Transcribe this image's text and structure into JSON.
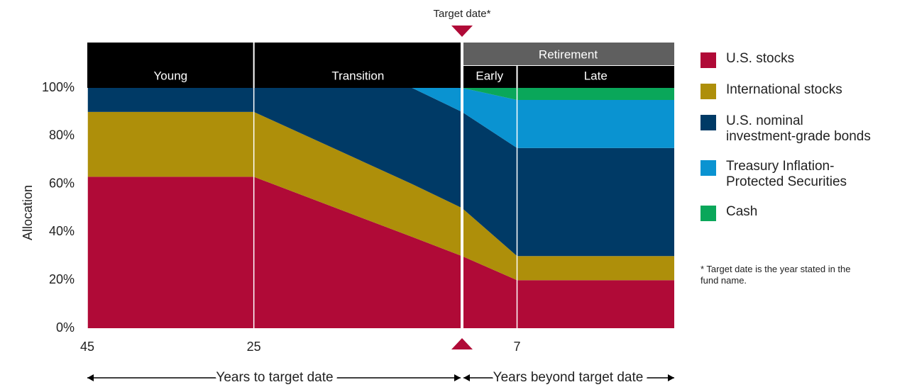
{
  "chart_data": {
    "type": "stacked-area",
    "y_label": "Allocation",
    "x": [
      -45,
      -25,
      -6,
      0,
      7,
      27
    ],
    "xlim": [
      -45,
      27
    ],
    "xticks": [
      {
        "value": -45,
        "label": "45"
      },
      {
        "value": -25,
        "label": "25"
      },
      {
        "value": 7,
        "label": "7"
      }
    ],
    "ylim": [
      0,
      100
    ],
    "yticks": [
      {
        "value": 0,
        "label": "0%"
      },
      {
        "value": 20,
        "label": "20%"
      },
      {
        "value": 40,
        "label": "40%"
      },
      {
        "value": 60,
        "label": "60%"
      },
      {
        "value": 80,
        "label": "80%"
      },
      {
        "value": 100,
        "label": "100%"
      }
    ],
    "series": [
      {
        "name": "U.S. stocks",
        "color": "#b00a37",
        "values": [
          63,
          63,
          38,
          30,
          20,
          20
        ]
      },
      {
        "name": "International stocks",
        "color": "#ae8f0a",
        "values": [
          27,
          27,
          22,
          20,
          10,
          10
        ]
      },
      {
        "name": "U.S. nominal investment-grade bonds",
        "color": "#003a66",
        "values": [
          10,
          10,
          40,
          40,
          45,
          45
        ]
      },
      {
        "name": "Treasury Inflation-Protected Securities",
        "color": "#0a93d1",
        "values": [
          0,
          0,
          0,
          10,
          20,
          20
        ]
      },
      {
        "name": "Cash",
        "color": "#0aa75a",
        "values": [
          0,
          0,
          0,
          0,
          5,
          5
        ]
      }
    ],
    "phases": {
      "young": "Young",
      "transition": "Transition",
      "retirement": "Retirement",
      "early": "Early",
      "late": "Late"
    },
    "target": {
      "label": "Target date*",
      "x": 0
    },
    "x_labels": {
      "before": "Years to target date",
      "after": "Years beyond target date"
    },
    "footnote": "* Target date is the year stated in the fund name."
  }
}
